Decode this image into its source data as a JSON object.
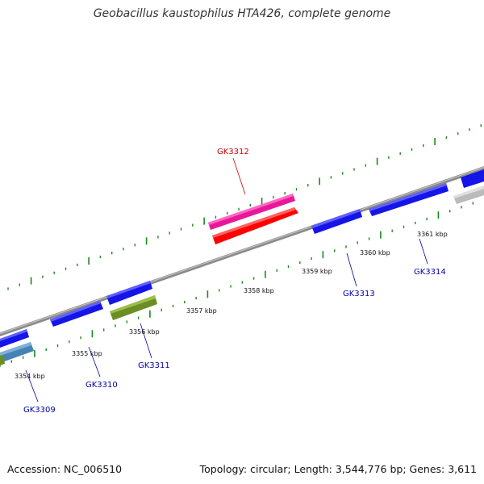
{
  "title": "Geobacillus kaustophilus HTA426, complete genome",
  "footer": {
    "accession": "Accession: NC_006510",
    "summary": "Topology: circular; Length: 3,544,776 bp; Genes: 3,611"
  },
  "scale_labels": [
    "3354 kbp",
    "3355 kbp",
    "3356 kbp",
    "3357 kbp",
    "3358 kbp",
    "3359 kbp",
    "3360 kbp",
    "3361 kbp"
  ],
  "gene_labels": [
    {
      "id": "GK3309",
      "color": "#0000aa"
    },
    {
      "id": "GK3310",
      "color": "#0000aa"
    },
    {
      "id": "GK3311",
      "color": "#0000aa"
    },
    {
      "id": "GK3312",
      "color": "#cc0000"
    },
    {
      "id": "GK3313",
      "color": "#0000aa"
    },
    {
      "id": "GK3314",
      "color": "#0000aa"
    }
  ],
  "colors": {
    "backbone": "#8c8c8c",
    "forward_gene": "#1515e8",
    "reverse_gene": "#1515e8",
    "rna_gene": "#6b8e23",
    "pseudo_gene": "#4682b4",
    "highlight_gene": "#e8189a",
    "highlight_cds": "#ff0000",
    "grey_gene": "#bbbbbb",
    "ticks": "#1a8a1a"
  }
}
